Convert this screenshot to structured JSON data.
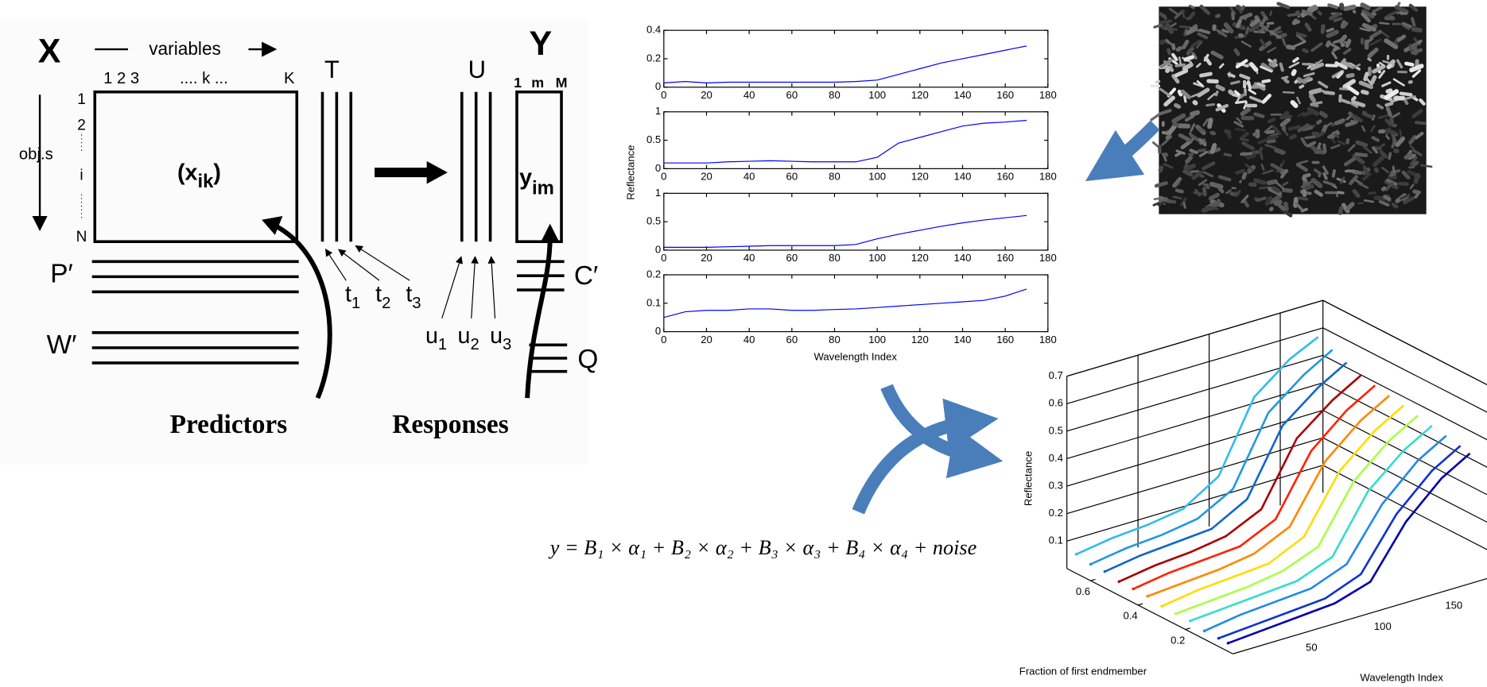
{
  "pls_diagram": {
    "x_block": "X",
    "variables": "variables",
    "column_indices": "1 2 3",
    "column_k": ".... k ...",
    "column_last": "K",
    "row_axis": "obj.s",
    "row_indices": [
      "1",
      "2",
      "i",
      "N"
    ],
    "cell": {
      "open": "(x",
      "sub": "ik",
      "close": ")"
    },
    "t_block": "T",
    "u_block": "U",
    "y_block": "Y",
    "y_columns": [
      "1",
      "m",
      "M"
    ],
    "y_cell": {
      "base": "y",
      "sub": "im"
    },
    "p_loadings": "P′",
    "w_weights": "W′",
    "c_loadings": "C′",
    "q_block": "Q",
    "t_scores": [
      {
        "base": "t",
        "sub": "1"
      },
      {
        "base": "t",
        "sub": "2"
      },
      {
        "base": "t",
        "sub": "3"
      }
    ],
    "u_scores": [
      {
        "base": "u",
        "sub": "1"
      },
      {
        "base": "u",
        "sub": "2"
      },
      {
        "base": "u",
        "sub": "3"
      }
    ],
    "predictors": "Predictors",
    "responses": "Responses"
  },
  "equation": "y = B₁ × α₁ + B₂ × α₂ + B₃ × α₃ + B₄ × α₄ + noise",
  "chart_data": [
    {
      "type": "line",
      "ylabel": "Reflectance",
      "color": "#0000ff",
      "x": [
        0,
        10,
        20,
        30,
        40,
        50,
        60,
        70,
        80,
        90,
        100,
        110,
        120,
        130,
        140,
        150,
        160,
        170
      ],
      "values": [
        0.03,
        0.04,
        0.03,
        0.035,
        0.035,
        0.035,
        0.035,
        0.035,
        0.035,
        0.04,
        0.05,
        0.09,
        0.13,
        0.17,
        0.2,
        0.23,
        0.26,
        0.29
      ],
      "xlim": [
        0,
        180
      ],
      "xticks": [
        0,
        20,
        40,
        60,
        80,
        100,
        120,
        140,
        160,
        180
      ],
      "ylim": [
        0,
        0.4
      ],
      "yticks": [
        0,
        0.2,
        0.4
      ]
    },
    {
      "type": "line",
      "color": "#0000ff",
      "x": [
        0,
        10,
        20,
        30,
        40,
        50,
        60,
        70,
        80,
        90,
        100,
        110,
        120,
        130,
        140,
        150,
        160,
        170
      ],
      "values": [
        0.1,
        0.1,
        0.1,
        0.12,
        0.13,
        0.14,
        0.13,
        0.12,
        0.12,
        0.12,
        0.2,
        0.45,
        0.55,
        0.65,
        0.75,
        0.8,
        0.82,
        0.85
      ],
      "xlim": [
        0,
        180
      ],
      "xticks": [
        0,
        20,
        40,
        60,
        80,
        100,
        120,
        140,
        160,
        180
      ],
      "ylim": [
        0,
        1
      ],
      "yticks": [
        0,
        0.5,
        1
      ]
    },
    {
      "type": "line",
      "color": "#0000ff",
      "x": [
        0,
        10,
        20,
        30,
        40,
        50,
        60,
        70,
        80,
        90,
        100,
        110,
        120,
        130,
        140,
        150,
        160,
        170
      ],
      "values": [
        0.05,
        0.05,
        0.05,
        0.06,
        0.07,
        0.08,
        0.08,
        0.08,
        0.08,
        0.1,
        0.2,
        0.28,
        0.35,
        0.42,
        0.48,
        0.53,
        0.57,
        0.61
      ],
      "xlim": [
        0,
        180
      ],
      "xticks": [
        0,
        20,
        40,
        60,
        80,
        100,
        120,
        140,
        160,
        180
      ],
      "ylim": [
        0,
        1
      ],
      "yticks": [
        0,
        0.5,
        1
      ]
    },
    {
      "type": "line",
      "xlabel": "Wavelength Index",
      "color": "#0000ff",
      "x": [
        0,
        10,
        20,
        30,
        40,
        50,
        60,
        70,
        80,
        90,
        100,
        110,
        120,
        130,
        140,
        150,
        160,
        170
      ],
      "values": [
        0.05,
        0.07,
        0.075,
        0.075,
        0.08,
        0.08,
        0.075,
        0.075,
        0.078,
        0.08,
        0.085,
        0.09,
        0.095,
        0.1,
        0.105,
        0.11,
        0.125,
        0.15
      ],
      "xlim": [
        0,
        180
      ],
      "xticks": [
        0,
        20,
        40,
        60,
        80,
        100,
        120,
        140,
        160,
        180
      ],
      "ylim": [
        0,
        0.2
      ],
      "yticks": [
        0,
        0.1,
        0.2
      ]
    },
    {
      "type": "line3d",
      "zlabel": "Reflectance",
      "xlabel": "Fraction of first endmember",
      "ylabel": "Wavelength Index",
      "wavelengths": [
        0,
        25,
        50,
        75,
        100,
        125,
        150,
        170
      ],
      "flim": [
        0,
        0.7
      ],
      "fticks": [
        0.2,
        0.4,
        0.6
      ],
      "wlim": [
        0,
        180
      ],
      "wticks": [
        50,
        100,
        150
      ],
      "zlim": [
        0,
        0.7
      ],
      "zticks": [
        0.1,
        0.2,
        0.3,
        0.4,
        0.5,
        0.6,
        0.7
      ],
      "series": [
        {
          "fraction": 0.66,
          "color": "#33bbee",
          "values": [
            0.07,
            0.09,
            0.1,
            0.12,
            0.2,
            0.45,
            0.55,
            0.6
          ]
        },
        {
          "fraction": 0.6,
          "color": "#2299dd",
          "values": [
            0.06,
            0.08,
            0.09,
            0.11,
            0.18,
            0.42,
            0.52,
            0.58
          ]
        },
        {
          "fraction": 0.54,
          "color": "#1166cc",
          "values": [
            0.06,
            0.08,
            0.09,
            0.1,
            0.17,
            0.4,
            0.5,
            0.56
          ]
        },
        {
          "fraction": 0.48,
          "color": "#aa0000",
          "values": [
            0.05,
            0.07,
            0.08,
            0.1,
            0.16,
            0.38,
            0.48,
            0.54
          ]
        },
        {
          "fraction": 0.42,
          "color": "#ff2200",
          "values": [
            0.05,
            0.07,
            0.08,
            0.09,
            0.15,
            0.36,
            0.47,
            0.53
          ]
        },
        {
          "fraction": 0.36,
          "color": "#ff8800",
          "values": [
            0.05,
            0.06,
            0.07,
            0.09,
            0.15,
            0.35,
            0.46,
            0.52
          ]
        },
        {
          "fraction": 0.3,
          "color": "#ffdd00",
          "values": [
            0.04,
            0.06,
            0.07,
            0.08,
            0.14,
            0.34,
            0.45,
            0.51
          ]
        },
        {
          "fraction": 0.24,
          "color": "#aaff44",
          "values": [
            0.04,
            0.05,
            0.06,
            0.08,
            0.13,
            0.33,
            0.44,
            0.5
          ]
        },
        {
          "fraction": 0.18,
          "color": "#33ddcc",
          "values": [
            0.04,
            0.05,
            0.06,
            0.07,
            0.12,
            0.32,
            0.43,
            0.49
          ]
        },
        {
          "fraction": 0.12,
          "color": "#2288ee",
          "values": [
            0.03,
            0.05,
            0.06,
            0.07,
            0.12,
            0.3,
            0.42,
            0.48
          ]
        },
        {
          "fraction": 0.06,
          "color": "#1133cc",
          "values": [
            0.03,
            0.04,
            0.05,
            0.06,
            0.11,
            0.29,
            0.41,
            0.47
          ]
        },
        {
          "fraction": 0.02,
          "color": "#0000aa",
          "values": [
            0.03,
            0.04,
            0.05,
            0.06,
            0.1,
            0.28,
            0.4,
            0.46
          ]
        }
      ]
    }
  ]
}
